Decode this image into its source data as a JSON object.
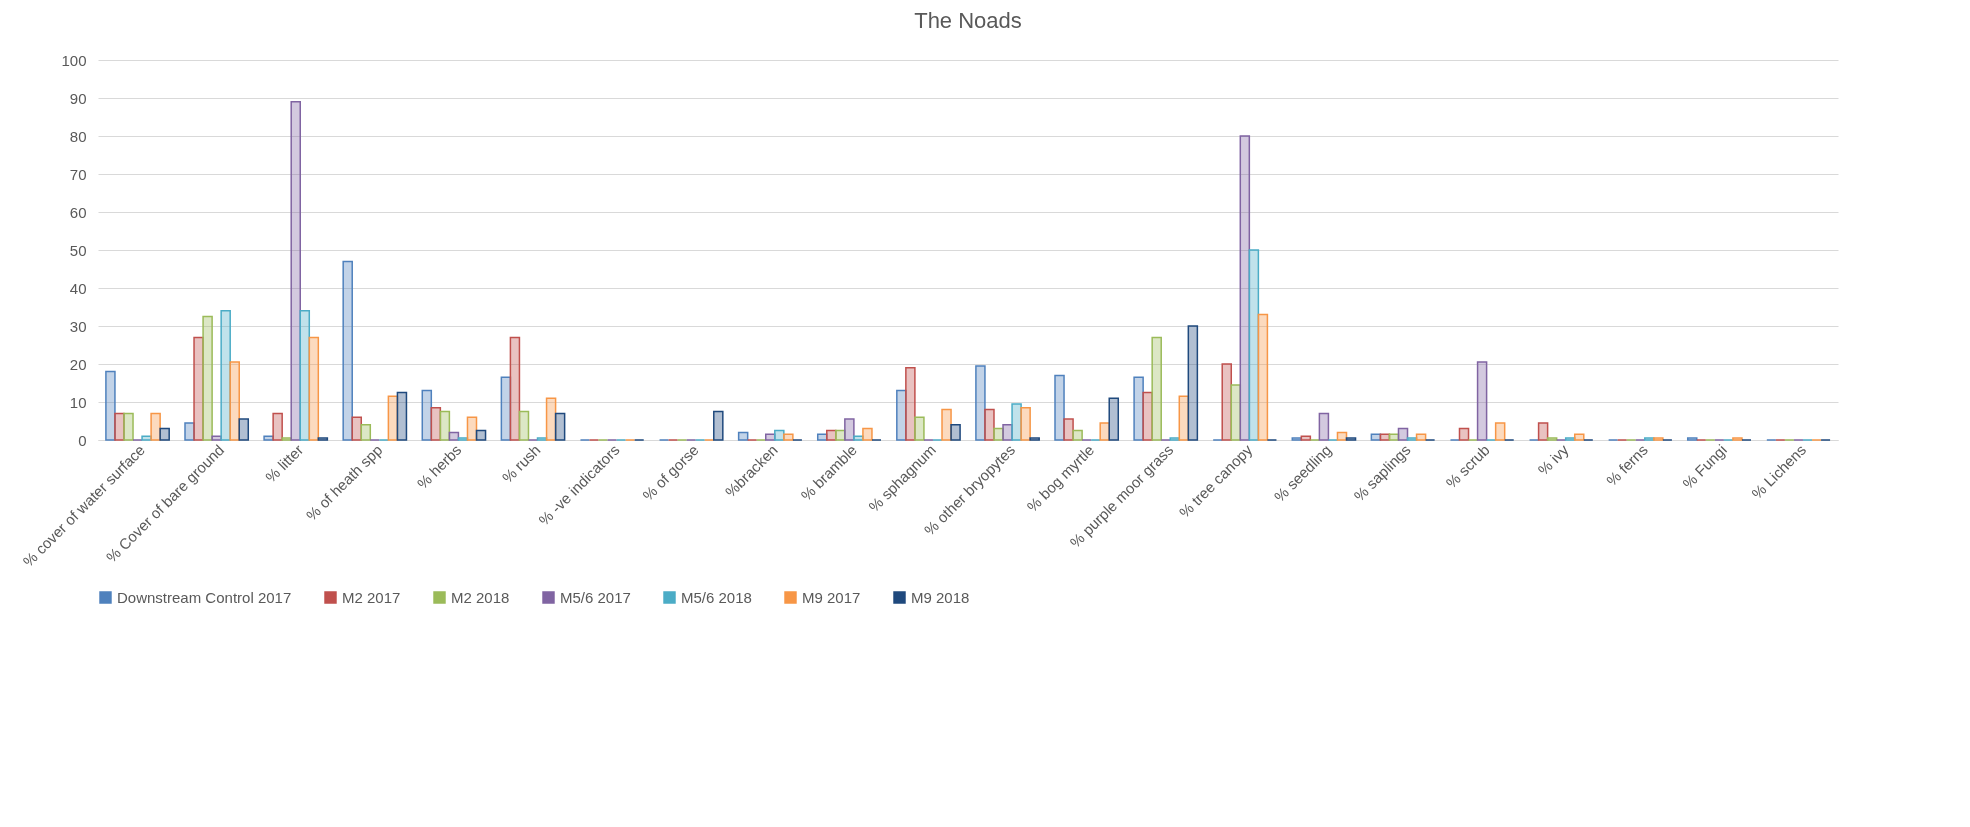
{
  "chart_data": {
    "type": "bar",
    "title": "The Noads",
    "categories": [
      "% cover of water surface",
      "% Cover of bare ground",
      "% litter",
      "% of heath spp",
      "% herbs",
      "% rush",
      "% -ve indicators",
      "% of gorse",
      "%bracken",
      "% bramble",
      "% sphagnum",
      "% other  bryopytes",
      "% bog myrtle",
      "% purple moor grass",
      "% tree canopy",
      "% seedling",
      "% saplings",
      "% scrub",
      "% ivy",
      "% ferns",
      "% Fungi",
      "% Lichens"
    ],
    "series": [
      {
        "name": "Downstream Control 2017",
        "color": "#4f81bd",
        "values": [
          18,
          4.5,
          1,
          47,
          13,
          16.5,
          0,
          0,
          2,
          1.5,
          13,
          19.5,
          17,
          16.5,
          0,
          0.5,
          1.5,
          0,
          0,
          0,
          0.5,
          0
        ]
      },
      {
        "name": "M2 2017",
        "color": "#c0504d",
        "values": [
          7,
          27,
          7,
          6,
          8.5,
          27,
          0,
          0,
          0,
          2.5,
          19,
          8,
          5.5,
          12.5,
          20,
          1,
          1.5,
          3,
          4.5,
          0,
          0,
          0
        ]
      },
      {
        "name": "M2 2018",
        "color": "#9bbb59",
        "values": [
          7,
          32.5,
          0.5,
          4,
          7.5,
          7.5,
          0,
          0,
          0,
          2.5,
          6,
          3,
          2.5,
          27,
          14.5,
          0,
          1.5,
          0,
          0.5,
          0,
          0,
          0
        ]
      },
      {
        "name": "M5/6 2017",
        "color": "#8064a2",
        "values": [
          0,
          1,
          89,
          0,
          2,
          0,
          0,
          0,
          1.5,
          5.5,
          0,
          4,
          0,
          0,
          80,
          7,
          3,
          20.5,
          0,
          0,
          0,
          0
        ]
      },
      {
        "name": "M5/6 2018",
        "color": "#4bacc6",
        "values": [
          1,
          34,
          34,
          0,
          0.5,
          0.5,
          0,
          0,
          2.5,
          1,
          0,
          9.5,
          0,
          0.5,
          50,
          0,
          0.5,
          0,
          0.5,
          0.5,
          0,
          0
        ]
      },
      {
        "name": "M9 2017",
        "color": "#f79646",
        "values": [
          7,
          20.5,
          27,
          11.5,
          6,
          11,
          0,
          0,
          1.5,
          3,
          8,
          8.5,
          4.5,
          11.5,
          33,
          2,
          1.5,
          4.5,
          1.5,
          0.5,
          0.5,
          0
        ]
      },
      {
        "name": "M9 2018",
        "color": "#1f497d",
        "values": [
          3,
          5.5,
          0.5,
          12.5,
          2.5,
          7,
          0,
          7.5,
          0,
          0,
          4,
          0.5,
          11,
          30,
          0,
          0.5,
          0,
          0,
          0,
          0,
          0,
          0
        ]
      }
    ],
    "ylim": [
      0,
      100
    ],
    "yticks": [
      0,
      10,
      20,
      30,
      40,
      50,
      60,
      70,
      80,
      90,
      100
    ],
    "grid": "y",
    "legend": "bottom"
  }
}
